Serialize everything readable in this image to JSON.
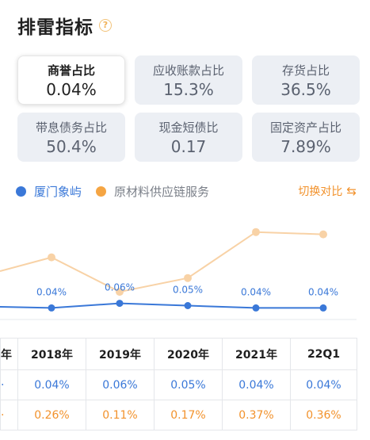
{
  "header": {
    "title": "排雷指标",
    "help_icon": "question-circle-icon"
  },
  "metrics": [
    {
      "label": "商誉占比",
      "value": "0.04%",
      "selected": true
    },
    {
      "label": "应收账款占比",
      "value": "15.3%"
    },
    {
      "label": "存货占比",
      "value": "36.5%"
    },
    {
      "label": "带息债务占比",
      "value": "50.4%"
    },
    {
      "label": "现金短债比",
      "value": "0.17"
    },
    {
      "label": "固定资产占比",
      "value": "7.89%"
    }
  ],
  "legend": {
    "company": "厦门象屿",
    "industry": "原材料供应链服务",
    "switch_label": "切换对比",
    "switch_icon": "switch-icon"
  },
  "colors": {
    "company": "#3a78d8",
    "industry": "#f5a55a",
    "accent": "#f2922c"
  },
  "chart_data": {
    "type": "line",
    "x": [
      "2018年",
      "2019年",
      "2020年",
      "2021年",
      "22Q1"
    ],
    "series": [
      {
        "name": "厦门象屿",
        "values": [
          0.04,
          0.06,
          0.05,
          0.04,
          0.04
        ],
        "labels": [
          "0.04%",
          "0.06%",
          "0.05%",
          "0.04%",
          "0.04%"
        ]
      },
      {
        "name": "原材料供应链服务",
        "values": [
          0.26,
          0.11,
          0.17,
          0.37,
          0.36
        ]
      }
    ]
  },
  "table": {
    "partial_header": "年",
    "columns": [
      "2018年",
      "2019年",
      "2020年",
      "2021年",
      "22Q1"
    ],
    "company_row": [
      "0.04%",
      "0.06%",
      "0.05%",
      "0.04%",
      "0.04%"
    ],
    "industry_row": [
      "0.26%",
      "0.11%",
      "0.17%",
      "0.37%",
      "0.36%"
    ]
  }
}
